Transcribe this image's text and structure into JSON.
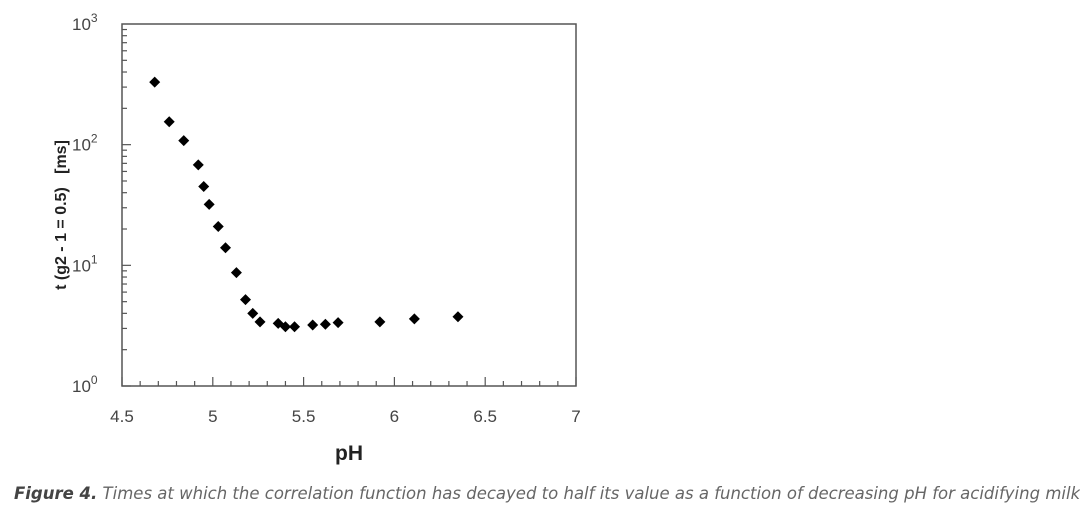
{
  "chart_data": {
    "type": "scatter",
    "xlabel": "pH",
    "ylabel": "t (g2 - 1 = 0.5)   [ms]",
    "xlim": [
      4.5,
      7
    ],
    "ylim": [
      1,
      1000
    ],
    "y_scale": "log",
    "grid": false,
    "x_ticks": [
      "4.5",
      "5",
      "5.5",
      "6",
      "6.5",
      "7"
    ],
    "y_ticks": [
      {
        "base": "10",
        "exp": "0"
      },
      {
        "base": "10",
        "exp": "1"
      },
      {
        "base": "10",
        "exp": "2"
      },
      {
        "base": "10",
        "exp": "3"
      }
    ],
    "points": [
      {
        "x": 4.68,
        "y": 330
      },
      {
        "x": 4.76,
        "y": 155
      },
      {
        "x": 4.84,
        "y": 108
      },
      {
        "x": 4.92,
        "y": 68
      },
      {
        "x": 4.95,
        "y": 45
      },
      {
        "x": 4.98,
        "y": 32
      },
      {
        "x": 5.03,
        "y": 21
      },
      {
        "x": 5.07,
        "y": 14
      },
      {
        "x": 5.13,
        "y": 8.7
      },
      {
        "x": 5.18,
        "y": 5.2
      },
      {
        "x": 5.22,
        "y": 4.0
      },
      {
        "x": 5.26,
        "y": 3.4
      },
      {
        "x": 5.36,
        "y": 3.3
      },
      {
        "x": 5.4,
        "y": 3.1
      },
      {
        "x": 5.45,
        "y": 3.1
      },
      {
        "x": 5.55,
        "y": 3.2
      },
      {
        "x": 5.62,
        "y": 3.25
      },
      {
        "x": 5.69,
        "y": 3.35
      },
      {
        "x": 5.92,
        "y": 3.4
      },
      {
        "x": 6.11,
        "y": 3.6
      },
      {
        "x": 6.35,
        "y": 3.75
      }
    ],
    "marker_color": "#000000"
  },
  "caption": {
    "label": "Figure 4.",
    "text": " Times at which the correlation function has decayed to half its value as a function of decreasing pH for acidifying milk."
  }
}
